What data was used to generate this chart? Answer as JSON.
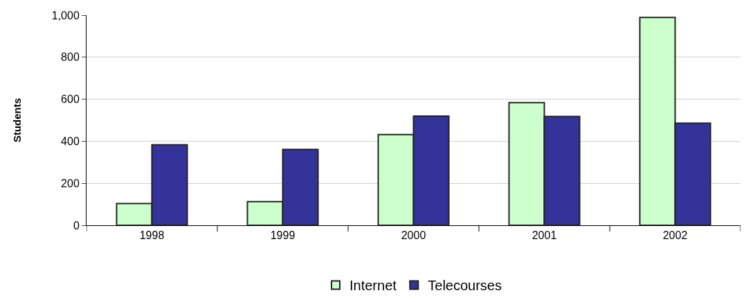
{
  "chart_data": {
    "type": "bar",
    "ylabel": "Students",
    "categories": [
      "1998",
      "1999",
      "2000",
      "2001",
      "2002"
    ],
    "series": [
      {
        "name": "Internet",
        "color": "#ccffcc",
        "values": [
          104,
          113,
          432,
          584,
          989
        ]
      },
      {
        "name": "Telecourses",
        "color": "#333399",
        "values": [
          383,
          361,
          520,
          518,
          486
        ]
      }
    ],
    "ylim": [
      0,
      1000
    ],
    "yticks": [
      0,
      200,
      400,
      600,
      800,
      {
        "value": 1000,
        "label": "1,000"
      }
    ],
    "grid": "y",
    "legend": "bottom"
  }
}
